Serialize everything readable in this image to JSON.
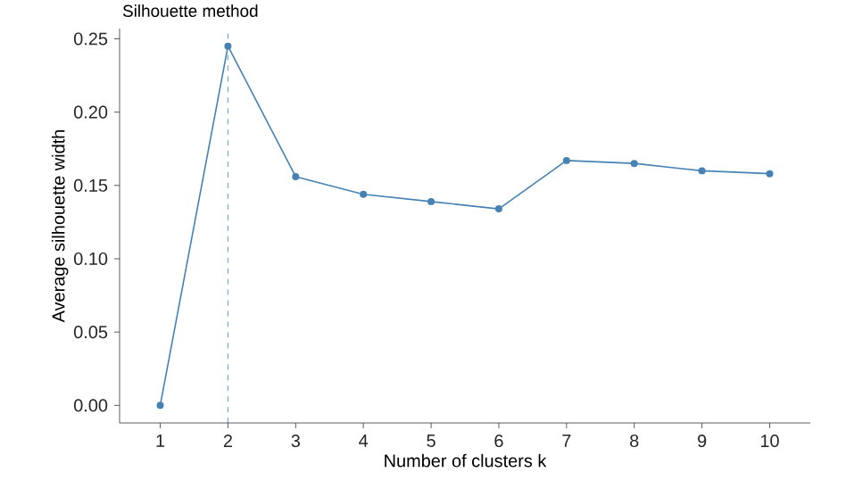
{
  "chart_data": {
    "type": "line",
    "title": "Silhouette method",
    "xlabel": "Number of clusters k",
    "ylabel": "Average silhouette width",
    "x": [
      1,
      2,
      3,
      4,
      5,
      6,
      7,
      8,
      9,
      10
    ],
    "series": [
      {
        "color": "#4682b4",
        "values": [
          0.0,
          0.245,
          0.156,
          0.144,
          0.139,
          0.134,
          0.167,
          0.165,
          0.16,
          0.158
        ]
      }
    ],
    "xlim": [
      0.4,
      10.6
    ],
    "ylim": [
      -0.012,
      0.257
    ],
    "xticks": [
      1,
      2,
      3,
      4,
      5,
      6,
      7,
      8,
      9,
      10
    ],
    "yticks": [
      {
        "value": 0,
        "label": "0.00"
      },
      {
        "value": 0.05,
        "label": "0.05"
      },
      {
        "value": 0.1,
        "label": "0.10"
      },
      {
        "value": 0.15,
        "label": "0.15"
      },
      {
        "value": 0.2,
        "label": "0.20"
      },
      {
        "value": 0.25,
        "label": "0.25"
      }
    ],
    "ref_lines": [
      {
        "axis": "x",
        "value": 2,
        "color": "#4682b4",
        "line_style": "dashed"
      }
    ],
    "marker": "circle",
    "line_style": "solid"
  }
}
